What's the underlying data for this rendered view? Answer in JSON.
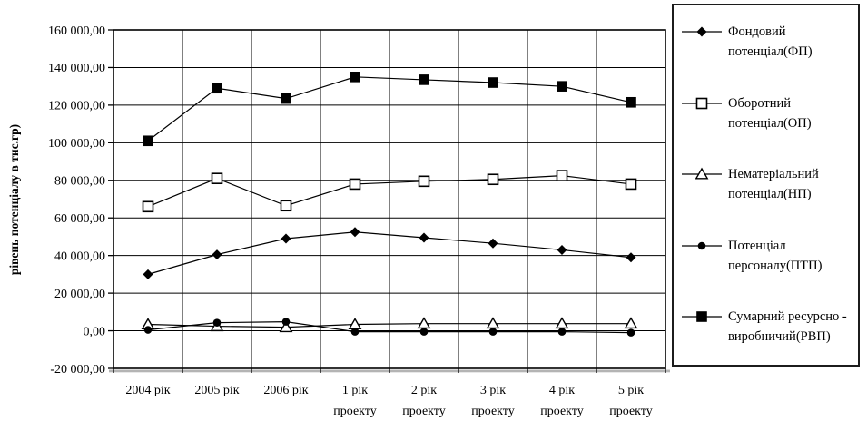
{
  "chart_data": {
    "type": "line",
    "ylabel": "рівень потенціалу в тис.гр)",
    "xlabel": "",
    "ylim": [
      -20000,
      160000
    ],
    "ytick_step": 20000,
    "grid": true,
    "legend_position": "right",
    "ytick_labels": [
      "160 000,00",
      "140 000,00",
      "120 000,00",
      "100 000,00",
      "80 000,00",
      "60 000,00",
      "40 000,00",
      "20 000,00",
      "0,00",
      "-20 000,00"
    ],
    "categories": [
      "2004 рік",
      "2005 рік",
      "2006 рік",
      "1 рік проекту",
      "2 рік проекту",
      "3 рік проекту",
      "4 рік проекту",
      "5 рік проекту"
    ],
    "category_label_lines": [
      [
        "2004 рік"
      ],
      [
        "2005 рік"
      ],
      [
        "2006 рік"
      ],
      [
        "1 рік",
        "проекту"
      ],
      [
        "2 рік",
        "проекту"
      ],
      [
        "3 рік",
        "проекту"
      ],
      [
        "4 рік",
        "проекту"
      ],
      [
        "5 рік",
        "проекту"
      ]
    ],
    "series": [
      {
        "id": "fp",
        "name": "Фондовий потенціал(ФП)",
        "label_lines": [
          "Фондовий",
          "потенціал(ФП)"
        ],
        "marker": "diamond-filled",
        "color": "#000000",
        "values": [
          30000,
          40500,
          49000,
          52500,
          49500,
          46500,
          43000,
          39000
        ]
      },
      {
        "id": "op",
        "name": "Оборотний потенціал(ОП)",
        "label_lines": [
          "Оборотний",
          "потенціал(ОП)"
        ],
        "marker": "square-open",
        "color": "#000000",
        "values": [
          66000,
          81000,
          66500,
          78000,
          79500,
          80500,
          82500,
          78000
        ]
      },
      {
        "id": "np",
        "name": "Нематеріальний потенціал(НП)",
        "label_lines": [
          "Нематеріальний",
          "потенціал(НП)"
        ],
        "marker": "triangle-open",
        "color": "#000000",
        "values": [
          3400,
          2400,
          1900,
          3400,
          3800,
          3800,
          3800,
          3800
        ]
      },
      {
        "id": "ptp",
        "name": "Потенціал персоналу(ПТП)",
        "label_lines": [
          "Потенціал",
          "персоналу(ПТП)"
        ],
        "marker": "circle-filled",
        "color": "#000000",
        "values": [
          500,
          4300,
          4800,
          -500,
          -500,
          -500,
          -500,
          -1000
        ]
      },
      {
        "id": "rvp",
        "name": "Сумарний ресурсно - виробничий(РВП)",
        "label_lines": [
          "Сумарний ресурсно -",
          "виробничий(РВП)"
        ],
        "marker": "square-filled",
        "color": "#000000",
        "values": [
          101000,
          129000,
          123500,
          135000,
          133500,
          132000,
          130000,
          121500
        ]
      }
    ]
  }
}
